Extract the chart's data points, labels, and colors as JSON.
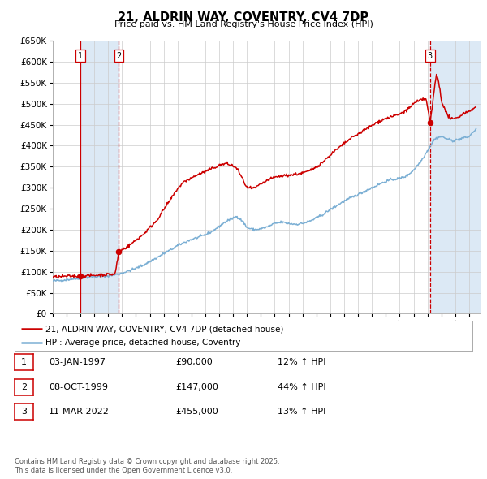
{
  "title": "21, ALDRIN WAY, COVENTRY, CV4 7DP",
  "subtitle": "Price paid vs. HM Land Registry's House Price Index (HPI)",
  "legend_line1": "21, ALDRIN WAY, COVENTRY, CV4 7DP (detached house)",
  "legend_line2": "HPI: Average price, detached house, Coventry",
  "footer1": "Contains HM Land Registry data © Crown copyright and database right 2025.",
  "footer2": "This data is licensed under the Open Government Licence v3.0.",
  "transactions": [
    {
      "num": 1,
      "date": "03-JAN-1997",
      "price": "£90,000",
      "hpi": "12% ↑ HPI",
      "year": 1997.01,
      "value": 90000
    },
    {
      "num": 2,
      "date": "08-OCT-1999",
      "price": "£147,000",
      "hpi": "44% ↑ HPI",
      "year": 1999.77,
      "value": 147000
    },
    {
      "num": 3,
      "date": "11-MAR-2022",
      "price": "£455,000",
      "hpi": "13% ↑ HPI",
      "year": 2022.19,
      "value": 455000
    }
  ],
  "red_line_color": "#cc0000",
  "blue_line_color": "#7bafd4",
  "grid_color": "#cccccc",
  "background_color": "#ffffff",
  "shade_color": "#dce9f5",
  "vline_color": "#cc0000",
  "ylim_max": 650000,
  "xmin": 1995.0,
  "xmax": 2025.8
}
